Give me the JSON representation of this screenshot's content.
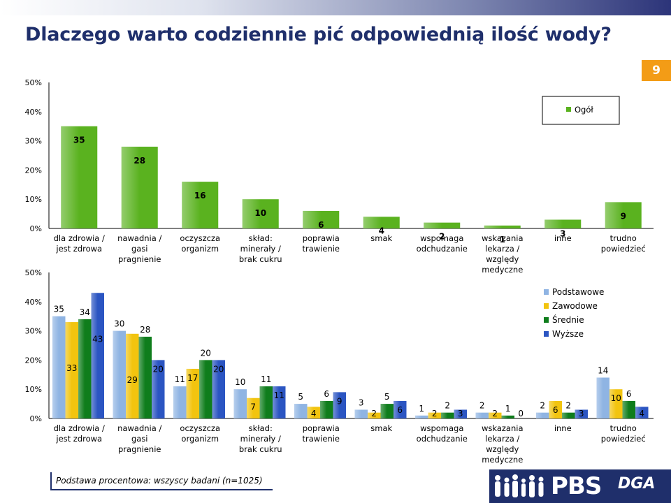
{
  "title": "Dlaczego warto codziennie pić odpowiednią ilość wody?",
  "page_number": "9",
  "footnote": "Podstawa procentowa: wszyscy badani (n=1025)",
  "logo": {
    "pbs": "PBS",
    "dga": "DGA"
  },
  "colors": {
    "ogol": "#5ab21f",
    "podstawowe": "#8fb4e3",
    "zawodowe": "#f2c40f",
    "srednie": "#0f7d1c",
    "wyzsze": "#2b55c2",
    "title": "#1f2f6b",
    "badge": "#f39c16"
  },
  "chart_data": [
    {
      "type": "bar",
      "categories": [
        "dla zdrowia / jest zdrowa",
        "nawadnia / gasi pragnienie",
        "oczyszcza organizm",
        "skład: minerały / brak cukru",
        "poprawia trawienie",
        "smak",
        "wspomaga odchudzanie",
        "wskazania lekarza / względy medyczne",
        "inne",
        "trudno powiedzieć"
      ],
      "series": [
        {
          "name": "Ogół",
          "values": [
            35,
            28,
            16,
            10,
            6,
            4,
            2,
            1,
            3,
            9
          ]
        }
      ],
      "ytick_labels": [
        "0%",
        "10%",
        "20%",
        "30%",
        "40%",
        "50%"
      ],
      "ylim": [
        0,
        50
      ],
      "legend_position": "top-right"
    },
    {
      "type": "bar",
      "categories": [
        "dla zdrowia / jest zdrowa",
        "nawadnia / gasi pragnienie",
        "oczyszcza organizm",
        "skład: minerały / brak cukru",
        "poprawia trawienie",
        "smak",
        "wspomaga odchudzanie",
        "wskazania lekarza / względy medyczne",
        "inne",
        "trudno powiedzieć"
      ],
      "series": [
        {
          "name": "Podstawowe",
          "values": [
            35,
            30,
            11,
            10,
            5,
            3,
            1,
            2,
            2,
            14
          ]
        },
        {
          "name": "Zawodowe",
          "values": [
            33,
            29,
            17,
            7,
            4,
            2,
            2,
            2,
            6,
            10
          ]
        },
        {
          "name": "Średnie",
          "values": [
            34,
            28,
            20,
            11,
            6,
            5,
            2,
            1,
            2,
            6
          ]
        },
        {
          "name": "Wyższe",
          "values": [
            43,
            20,
            20,
            11,
            9,
            6,
            3,
            0,
            3,
            4
          ]
        }
      ],
      "ytick_labels": [
        "0%",
        "10%",
        "20%",
        "30%",
        "40%",
        "50%"
      ],
      "ylim": [
        0,
        50
      ],
      "legend_position": "top-right"
    }
  ]
}
